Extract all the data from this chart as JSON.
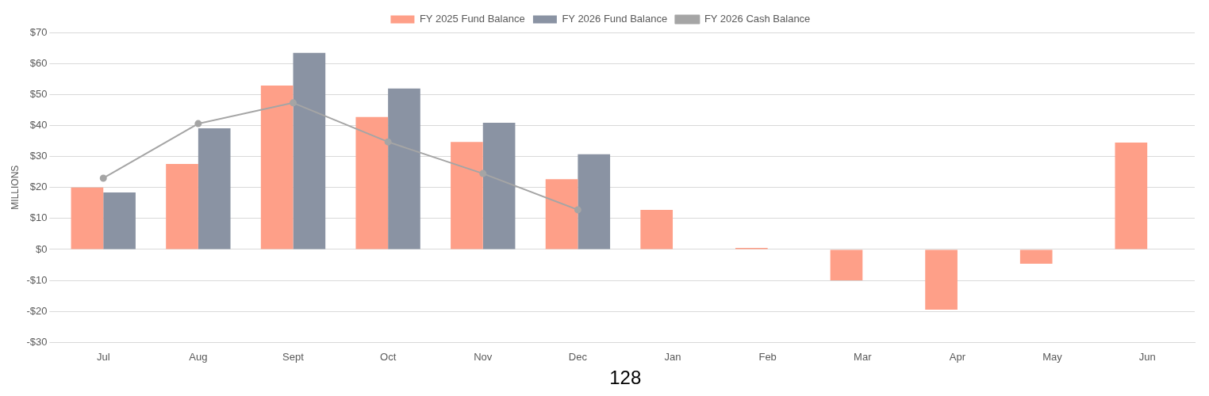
{
  "chart_data": {
    "type": "bar",
    "ylabel": "MILLIONS",
    "categories": [
      "Jul",
      "Aug",
      "Sept",
      "Oct",
      "Nov",
      "Dec",
      "Jan",
      "Feb",
      "Mar",
      "Apr",
      "May",
      "Jun"
    ],
    "series": [
      {
        "name": "FY 2025 Fund Balance",
        "color": "#fe9f88",
        "values": [
          20,
          27.6,
          52.9,
          42.7,
          34.7,
          22.7,
          12.8,
          0.5,
          -10,
          -19.4,
          -4.6,
          34.5
        ]
      },
      {
        "name": "FY 2026 Fund Balance",
        "color": "#8a93a3",
        "values": [
          18.4,
          39.1,
          63.4,
          51.9,
          40.9,
          30.7,
          null,
          null,
          null,
          null,
          null,
          null
        ]
      },
      {
        "name": "FY 2026 Cash Balance",
        "type": "line",
        "color": "#a5a5a5",
        "marker": "circle",
        "values": [
          23,
          40.6,
          47.3,
          34.7,
          24.5,
          12.8,
          null,
          null,
          null,
          null,
          null,
          null
        ]
      }
    ],
    "ylim": [
      -30,
      70
    ],
    "yticks": [
      {
        "value": -30,
        "label": "-$30"
      },
      {
        "value": -20,
        "label": "-$20"
      },
      {
        "value": -10,
        "label": "-$10"
      },
      {
        "value": 0,
        "label": "$0"
      },
      {
        "value": 10,
        "label": "$10"
      },
      {
        "value": 20,
        "label": "$20"
      },
      {
        "value": 30,
        "label": "$30"
      },
      {
        "value": 40,
        "label": "$40"
      },
      {
        "value": 50,
        "label": "$50"
      },
      {
        "value": 60,
        "label": "$60"
      },
      {
        "value": 70,
        "label": "$70"
      }
    ],
    "grid": "y",
    "legend": "top",
    "annotations": [
      "128"
    ]
  }
}
